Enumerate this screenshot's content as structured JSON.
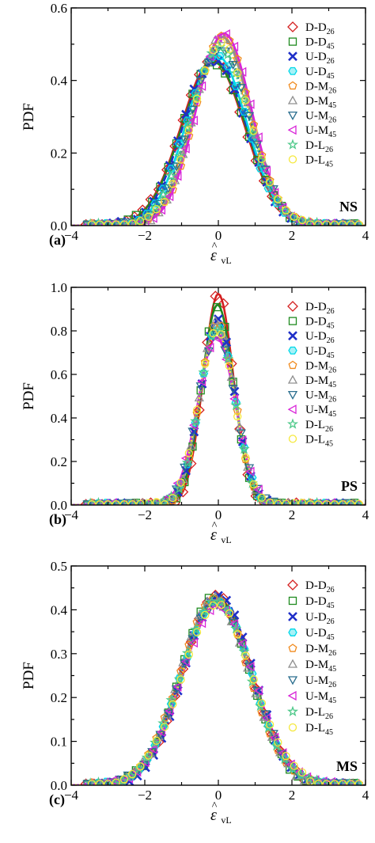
{
  "chart_data": [
    {
      "type": "line",
      "panel_label": "(a)",
      "tag": "NS",
      "ylabel": "PDF",
      "xlabel": "ε̂vL",
      "xlim": [
        -4,
        4
      ],
      "ylim": [
        0,
        0.6
      ],
      "xticks": [
        -4,
        -2,
        0,
        2,
        4
      ],
      "yticks": [
        0.0,
        0.2,
        0.4,
        0.6
      ],
      "ytick_labels": [
        "0.0",
        "0.2",
        "0.4",
        "0.6"
      ],
      "series": [
        {
          "name": "D-D",
          "sub": "26",
          "color": "#d42020",
          "marker": "diamond",
          "mean": -0.15,
          "sd": 0.86,
          "peak": 0.455,
          "dash": "none"
        },
        {
          "name": "D-D",
          "sub": "45",
          "color": "#1e8a1e",
          "marker": "square",
          "mean": -0.12,
          "sd": 0.87,
          "peak": 0.45,
          "dash": "none"
        },
        {
          "name": "U-D",
          "sub": "26",
          "color": "#1f2fc8",
          "marker": "xcross",
          "mean": -0.1,
          "sd": 0.85,
          "peak": 0.46,
          "dash": "8,5"
        },
        {
          "name": "U-D",
          "sub": "45",
          "color": "#00d8e8",
          "marker": "hexagon",
          "mean": -0.05,
          "sd": 0.82,
          "peak": 0.47,
          "dash": "none"
        },
        {
          "name": "D-M",
          "sub": "26",
          "color": "#f08a1e",
          "marker": "pentagon",
          "mean": 0.12,
          "sd": 0.76,
          "peak": 0.52,
          "dash": "none"
        },
        {
          "name": "D-M",
          "sub": "45",
          "color": "#909090",
          "marker": "triangle-up",
          "mean": 0.1,
          "sd": 0.76,
          "peak": 0.52,
          "dash": "none"
        },
        {
          "name": "U-M",
          "sub": "26",
          "color": "#2c6f8f",
          "marker": "triangle-down",
          "mean": 0.05,
          "sd": 0.8,
          "peak": 0.49,
          "dash": "5,4"
        },
        {
          "name": "U-M",
          "sub": "45",
          "color": "#d824d8",
          "marker": "triangle-left",
          "mean": 0.15,
          "sd": 0.75,
          "peak": 0.53,
          "dash": "none"
        },
        {
          "name": "D-L",
          "sub": "26",
          "color": "#4fc98a",
          "marker": "star",
          "mean": 0.02,
          "sd": 0.8,
          "peak": 0.49,
          "dash": "2,3"
        },
        {
          "name": "D-L",
          "sub": "45",
          "color": "#f5e83a",
          "marker": "circle",
          "mean": 0.08,
          "sd": 0.78,
          "peak": 0.5,
          "dash": "2,3"
        }
      ]
    },
    {
      "type": "line",
      "panel_label": "(b)",
      "tag": "PS",
      "ylabel": "PDF",
      "xlabel": "ε̂vL",
      "xlim": [
        -4,
        4
      ],
      "ylim": [
        0,
        1.0
      ],
      "xticks": [
        -4,
        -2,
        0,
        2,
        4
      ],
      "yticks": [
        0.0,
        0.2,
        0.4,
        0.6,
        0.8,
        1.0
      ],
      "ytick_labels": [
        "0.0",
        "0.2",
        "0.4",
        "0.6",
        "0.8",
        "1.0"
      ],
      "series": [
        {
          "name": "D-D",
          "sub": "26",
          "color": "#d42020",
          "marker": "diamond",
          "mean": 0.0,
          "sd": 0.41,
          "peak": 0.97,
          "dash": "none"
        },
        {
          "name": "D-D",
          "sub": "45",
          "color": "#1e8a1e",
          "marker": "square",
          "mean": -0.02,
          "sd": 0.43,
          "peak": 0.92,
          "dash": "none"
        },
        {
          "name": "U-D",
          "sub": "26",
          "color": "#1f2fc8",
          "marker": "xcross",
          "mean": -0.02,
          "sd": 0.46,
          "peak": 0.86,
          "dash": "8,5"
        },
        {
          "name": "U-D",
          "sub": "45",
          "color": "#00d8e8",
          "marker": "hexagon",
          "mean": -0.03,
          "sd": 0.48,
          "peak": 0.82,
          "dash": "none"
        },
        {
          "name": "D-M",
          "sub": "26",
          "color": "#f08a1e",
          "marker": "pentagon",
          "mean": -0.03,
          "sd": 0.47,
          "peak": 0.84,
          "dash": "none"
        },
        {
          "name": "D-M",
          "sub": "45",
          "color": "#909090",
          "marker": "triangle-up",
          "mean": -0.03,
          "sd": 0.47,
          "peak": 0.84,
          "dash": "none"
        },
        {
          "name": "U-M",
          "sub": "26",
          "color": "#2c6f8f",
          "marker": "triangle-down",
          "mean": -0.04,
          "sd": 0.5,
          "peak": 0.79,
          "dash": "5,4"
        },
        {
          "name": "U-M",
          "sub": "45",
          "color": "#d824d8",
          "marker": "triangle-left",
          "mean": -0.05,
          "sd": 0.51,
          "peak": 0.77,
          "dash": "none"
        },
        {
          "name": "D-L",
          "sub": "26",
          "color": "#4fc98a",
          "marker": "star",
          "mean": -0.04,
          "sd": 0.48,
          "peak": 0.81,
          "dash": "2,3"
        },
        {
          "name": "D-L",
          "sub": "45",
          "color": "#f5e83a",
          "marker": "circle",
          "mean": -0.04,
          "sd": 0.49,
          "peak": 0.8,
          "dash": "2,3"
        }
      ]
    },
    {
      "type": "line",
      "panel_label": "(c)",
      "tag": "MS",
      "ylabel": "PDF",
      "xlabel": "ε̂vL",
      "xlim": [
        -4,
        4
      ],
      "ylim": [
        0,
        0.5
      ],
      "xticks": [
        -4,
        -2,
        0,
        2,
        4
      ],
      "yticks": [
        0.0,
        0.1,
        0.2,
        0.3,
        0.4,
        0.5
      ],
      "ytick_labels": [
        "0.0",
        "0.1",
        "0.2",
        "0.3",
        "0.4",
        "0.5"
      ],
      "series": [
        {
          "name": "D-D",
          "sub": "26",
          "color": "#d42020",
          "marker": "diamond",
          "mean": -0.05,
          "sd": 0.93,
          "peak": 0.43,
          "dash": "none"
        },
        {
          "name": "D-D",
          "sub": "45",
          "color": "#1e8a1e",
          "marker": "square",
          "mean": -0.08,
          "sd": 0.93,
          "peak": 0.43,
          "dash": "none"
        },
        {
          "name": "U-D",
          "sub": "26",
          "color": "#1f2fc8",
          "marker": "xcross",
          "mean": 0.0,
          "sd": 0.92,
          "peak": 0.435,
          "dash": "8,5"
        },
        {
          "name": "U-D",
          "sub": "45",
          "color": "#00d8e8",
          "marker": "hexagon",
          "mean": -0.05,
          "sd": 0.95,
          "peak": 0.42,
          "dash": "none"
        },
        {
          "name": "D-M",
          "sub": "26",
          "color": "#f08a1e",
          "marker": "pentagon",
          "mean": -0.1,
          "sd": 0.94,
          "peak": 0.425,
          "dash": "none"
        },
        {
          "name": "D-M",
          "sub": "45",
          "color": "#909090",
          "marker": "triangle-up",
          "mean": -0.1,
          "sd": 0.94,
          "peak": 0.425,
          "dash": "none"
        },
        {
          "name": "U-M",
          "sub": "26",
          "color": "#2c6f8f",
          "marker": "triangle-down",
          "mean": -0.05,
          "sd": 0.96,
          "peak": 0.415,
          "dash": "5,4"
        },
        {
          "name": "U-M",
          "sub": "45",
          "color": "#d824d8",
          "marker": "triangle-left",
          "mean": -0.02,
          "sd": 0.97,
          "peak": 0.41,
          "dash": "none"
        },
        {
          "name": "D-L",
          "sub": "26",
          "color": "#4fc98a",
          "marker": "star",
          "mean": -0.08,
          "sd": 0.95,
          "peak": 0.42,
          "dash": "2,3"
        },
        {
          "name": "D-L",
          "sub": "45",
          "color": "#f5e83a",
          "marker": "circle",
          "mean": -0.03,
          "sd": 0.97,
          "peak": 0.41,
          "dash": "2,3"
        }
      ]
    }
  ]
}
